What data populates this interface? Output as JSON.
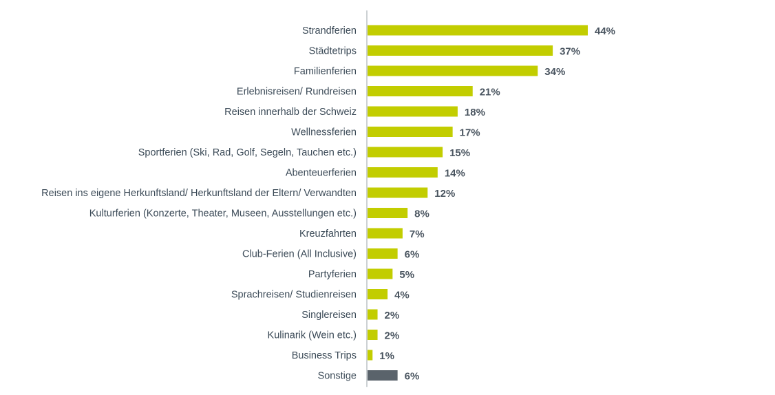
{
  "chart_data": {
    "type": "bar",
    "orientation": "horizontal",
    "title": "",
    "xlabel": "",
    "ylabel": "",
    "xlim": [
      0,
      44
    ],
    "unit": "%",
    "grid": false,
    "categories": [
      "Strandferien",
      "Städtetrips",
      "Familienferien",
      "Erlebnisreisen/ Rundreisen",
      "Reisen innerhalb der Schweiz",
      "Wellnessferien",
      "Sportferien (Ski, Rad, Golf, Segeln, Tauchen etc.)",
      "Abenteuerferien",
      "Reisen ins eigene Herkunftsland/ Herkunftsland der Eltern/ Verwandten",
      "Kulturferien (Konzerte, Theater, Museen, Ausstellungen etc.)",
      "Kreuzfahrten",
      "Club-Ferien (All Inclusive)",
      "Partyferien",
      "Sprachreisen/ Studienreisen",
      "Singlereisen",
      "Kulinarik (Wein etc.)",
      "Business Trips",
      "Sonstige"
    ],
    "values": [
      44,
      37,
      34,
      21,
      18,
      17,
      15,
      14,
      12,
      8,
      7,
      6,
      5,
      4,
      2,
      2,
      1,
      6
    ],
    "value_labels": [
      "44%",
      "37%",
      "34%",
      "21%",
      "18%",
      "17%",
      "15%",
      "14%",
      "12%",
      "8%",
      "7%",
      "6%",
      "5%",
      "4%",
      "2%",
      "2%",
      "1%",
      "6%"
    ],
    "bar_colors": [
      "#c2cd00",
      "#c2cd00",
      "#c2cd00",
      "#c2cd00",
      "#c2cd00",
      "#c2cd00",
      "#c2cd00",
      "#c2cd00",
      "#c2cd00",
      "#c2cd00",
      "#c2cd00",
      "#c2cd00",
      "#c2cd00",
      "#c2cd00",
      "#c2cd00",
      "#c2cd00",
      "#c2cd00",
      "#5a636b"
    ]
  }
}
